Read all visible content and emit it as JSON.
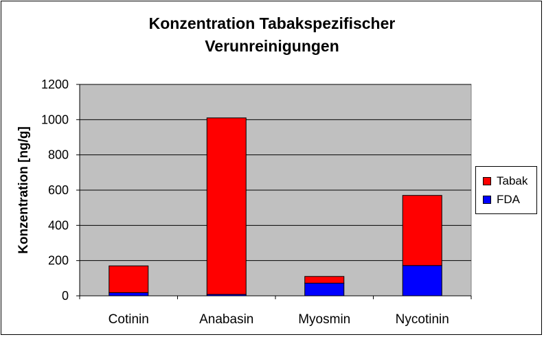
{
  "chart_data": {
    "type": "bar",
    "stacked": true,
    "title_lines": [
      "Konzentration Tabakspezifischer",
      "Verunreinigungen"
    ],
    "xlabel": "",
    "ylabel": "Konzentration [ng/g]",
    "ylim": [
      0,
      1200
    ],
    "yticks": [
      0,
      200,
      400,
      600,
      800,
      1000,
      1200
    ],
    "grid": true,
    "legend_position": "right",
    "categories": [
      "Cotinin",
      "Anabasin",
      "Myosmin",
      "Nycotinin"
    ],
    "series": [
      {
        "name": "FDA",
        "color": "#0000ff",
        "values": [
          18,
          8,
          72,
          172
        ]
      },
      {
        "name": "Tabak",
        "color": "#ff0000",
        "values": [
          152,
          1002,
          38,
          398
        ]
      }
    ],
    "plot_background": "#c0c0c0"
  },
  "legend": {
    "items": [
      {
        "label": "Tabak",
        "color": "#ff0000"
      },
      {
        "label": "FDA",
        "color": "#0000ff"
      }
    ]
  }
}
